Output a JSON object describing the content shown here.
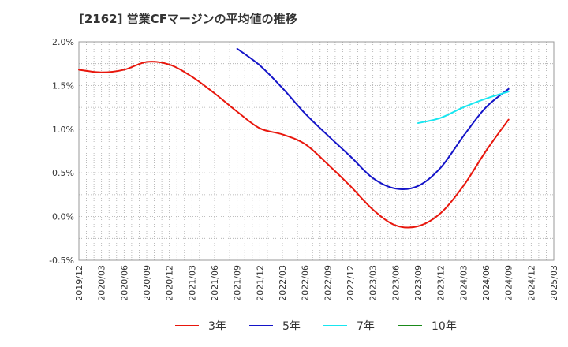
{
  "title": "[2162]  営業CFマージンの平均値の推移",
  "chart_data": {
    "type": "line",
    "title": "[2162]  営業CFマージンの平均値の推移",
    "xlabel": "",
    "ylabel": "",
    "ylim": [
      -0.5,
      2.0
    ],
    "yticks": [
      "-0.5%",
      "0.0%",
      "0.5%",
      "1.0%",
      "1.5%",
      "2.0%"
    ],
    "x_tick_labels": [
      "2019/12",
      "2020/03",
      "2020/06",
      "2020/09",
      "2020/12",
      "2021/03",
      "2021/06",
      "2021/09",
      "2021/12",
      "2022/03",
      "2022/06",
      "2022/09",
      "2022/12",
      "2023/03",
      "2023/06",
      "2023/09",
      "2023/12",
      "2024/03",
      "2024/06",
      "2024/09",
      "2024/12",
      "2025/03"
    ],
    "grid": true,
    "legend_position": "bottom",
    "series": [
      {
        "name": "3年",
        "color": "#e8160c",
        "x": [
          "2019/12",
          "2020/03",
          "2020/06",
          "2020/09",
          "2020/12",
          "2021/03",
          "2021/06",
          "2021/09",
          "2021/12",
          "2022/03",
          "2022/06",
          "2022/09",
          "2022/12",
          "2023/03",
          "2023/06",
          "2023/09",
          "2023/12",
          "2024/03",
          "2024/06",
          "2024/09"
        ],
        "values": [
          1.68,
          1.65,
          1.68,
          1.77,
          1.74,
          1.6,
          1.41,
          1.2,
          1.01,
          0.94,
          0.83,
          0.6,
          0.35,
          0.08,
          -0.1,
          -0.11,
          0.04,
          0.35,
          0.75,
          1.11
        ]
      },
      {
        "name": "5年",
        "color": "#1414c8",
        "x": [
          "2021/09",
          "2021/12",
          "2022/03",
          "2022/06",
          "2022/09",
          "2022/12",
          "2023/03",
          "2023/06",
          "2023/09",
          "2023/12",
          "2024/03",
          "2024/06",
          "2024/09"
        ],
        "values": [
          1.92,
          1.73,
          1.47,
          1.18,
          0.93,
          0.69,
          0.44,
          0.32,
          0.35,
          0.56,
          0.92,
          1.25,
          1.46
        ]
      },
      {
        "name": "7年",
        "color": "#18e6f0",
        "x": [
          "2023/09",
          "2023/12",
          "2024/03",
          "2024/06",
          "2024/09"
        ],
        "values": [
          1.07,
          1.13,
          1.25,
          1.35,
          1.43
        ]
      },
      {
        "name": "10年",
        "color": "#1a8a1a",
        "x": [],
        "values": []
      }
    ]
  }
}
